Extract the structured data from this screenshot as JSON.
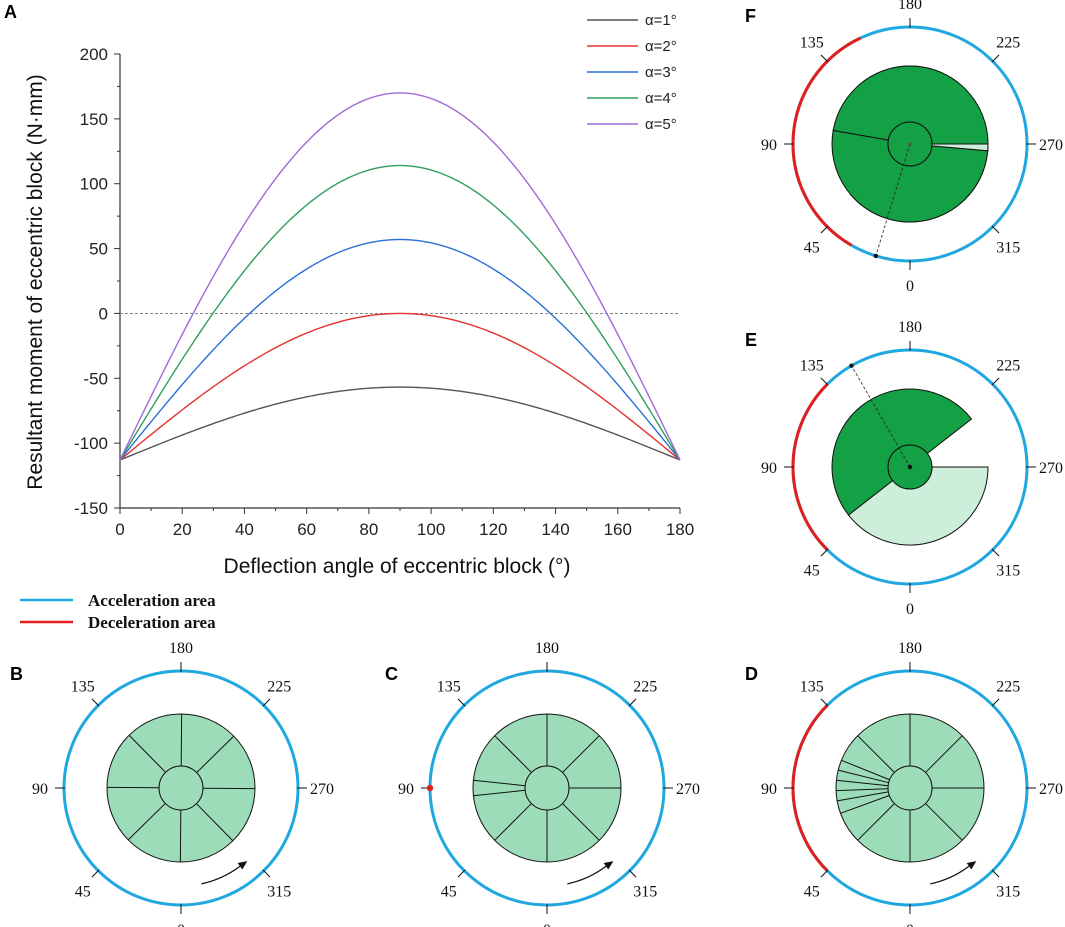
{
  "chart_data": [
    {
      "panel": "A",
      "type": "line",
      "xlabel": "Deflection angle of eccentric block (°)",
      "ylabel": "Resultant moment of eccentric block (N·mm)",
      "xlim": [
        0,
        180
      ],
      "ylim": [
        -150,
        200
      ],
      "xticks": [
        "0",
        "20",
        "40",
        "60",
        "80",
        "100",
        "120",
        "140",
        "160",
        "180"
      ],
      "yticks": [
        "-150",
        "-100",
        "-50",
        "0",
        "50",
        "100",
        "150",
        "200"
      ],
      "reference_line_y": 0,
      "x": [
        0,
        10,
        20,
        30,
        40,
        50,
        60,
        70,
        80,
        90,
        100,
        110,
        120,
        130,
        140,
        150,
        160,
        170,
        180
      ],
      "series": [
        {
          "name": "α=1°",
          "color": "#555555",
          "values": [
            -113,
            -103.3,
            -94.2,
            -85.9,
            -78.7,
            -72.7,
            -67.9,
            -64.6,
            -62.5,
            -56.8,
            -62.5,
            -64.6,
            -67.9,
            -72.7,
            -78.7,
            -85.9,
            -94.2,
            -103.3,
            -113
          ]
        },
        {
          "name": "α=2°",
          "color": "#e53030",
          "values": [
            -113,
            -94.7,
            -76.4,
            -58.8,
            -42.6,
            -28.3,
            -16.4,
            -7.6,
            -1.9,
            0,
            -1.9,
            -7.6,
            -16.4,
            -28.3,
            -42.6,
            -58.8,
            -76.4,
            -94.7,
            -113
          ]
        },
        {
          "name": "α=3°",
          "color": "#2a6fd6",
          "values": [
            -113,
            -85.0,
            -56.5,
            -30.0,
            -5.5,
            15.8,
            33.6,
            46.6,
            54.7,
            57.0,
            54.7,
            46.6,
            33.6,
            15.8,
            -5.5,
            -30.0,
            -56.5,
            -85.0,
            -113
          ]
        },
        {
          "name": "α=4°",
          "color": "#2e9e5e",
          "values": [
            -113,
            -75.7,
            -37.1,
            -1.0,
            31.0,
            59.4,
            83.2,
            101.0,
            111.0,
            114.0,
            111.0,
            101.0,
            83.2,
            59.4,
            31.0,
            -1.0,
            -37.1,
            -75.7,
            -113
          ]
        },
        {
          "name": "α=5°",
          "color": "#a06ad6",
          "values": [
            -113,
            -66.2,
            -17.6,
            28.0,
            68.0,
            103.0,
            133.0,
            155.0,
            167.0,
            170.0,
            167.0,
            155.0,
            133.0,
            103.0,
            68.0,
            28.0,
            -17.6,
            -66.2,
            -113
          ]
        }
      ],
      "legend_position": "top-right"
    }
  ],
  "area_legend": {
    "acceleration": {
      "label": "Acceleration area",
      "color": "#1fa7e0"
    },
    "deceleration": {
      "label": "Deceleration area",
      "color": "#e31e1e"
    }
  },
  "dials": {
    "angle_labels": [
      "0",
      "45",
      "90",
      "135",
      "180",
      "225",
      "270",
      "315"
    ],
    "panels": [
      {
        "letter": "B",
        "decel_arc_deg": null,
        "marker_deg": null
      },
      {
        "letter": "C",
        "decel_arc_deg": null,
        "marker_deg": 90
      },
      {
        "letter": "D",
        "decel_arc_deg": [
          45,
          135
        ],
        "marker_deg": null
      },
      {
        "letter": "E",
        "decel_arc_deg": [
          45,
          135
        ],
        "marker_deg": 150
      },
      {
        "letter": "F",
        "decel_arc_deg": [
          30,
          155
        ],
        "marker_deg": 30
      }
    ]
  },
  "colors": {
    "rotor_light": "#9ddcb9",
    "sector_dark": "#14a044",
    "sector_light": "#cdeedb",
    "ring_accel": "#1fa7e0",
    "ring_decel": "#e31e1e"
  }
}
